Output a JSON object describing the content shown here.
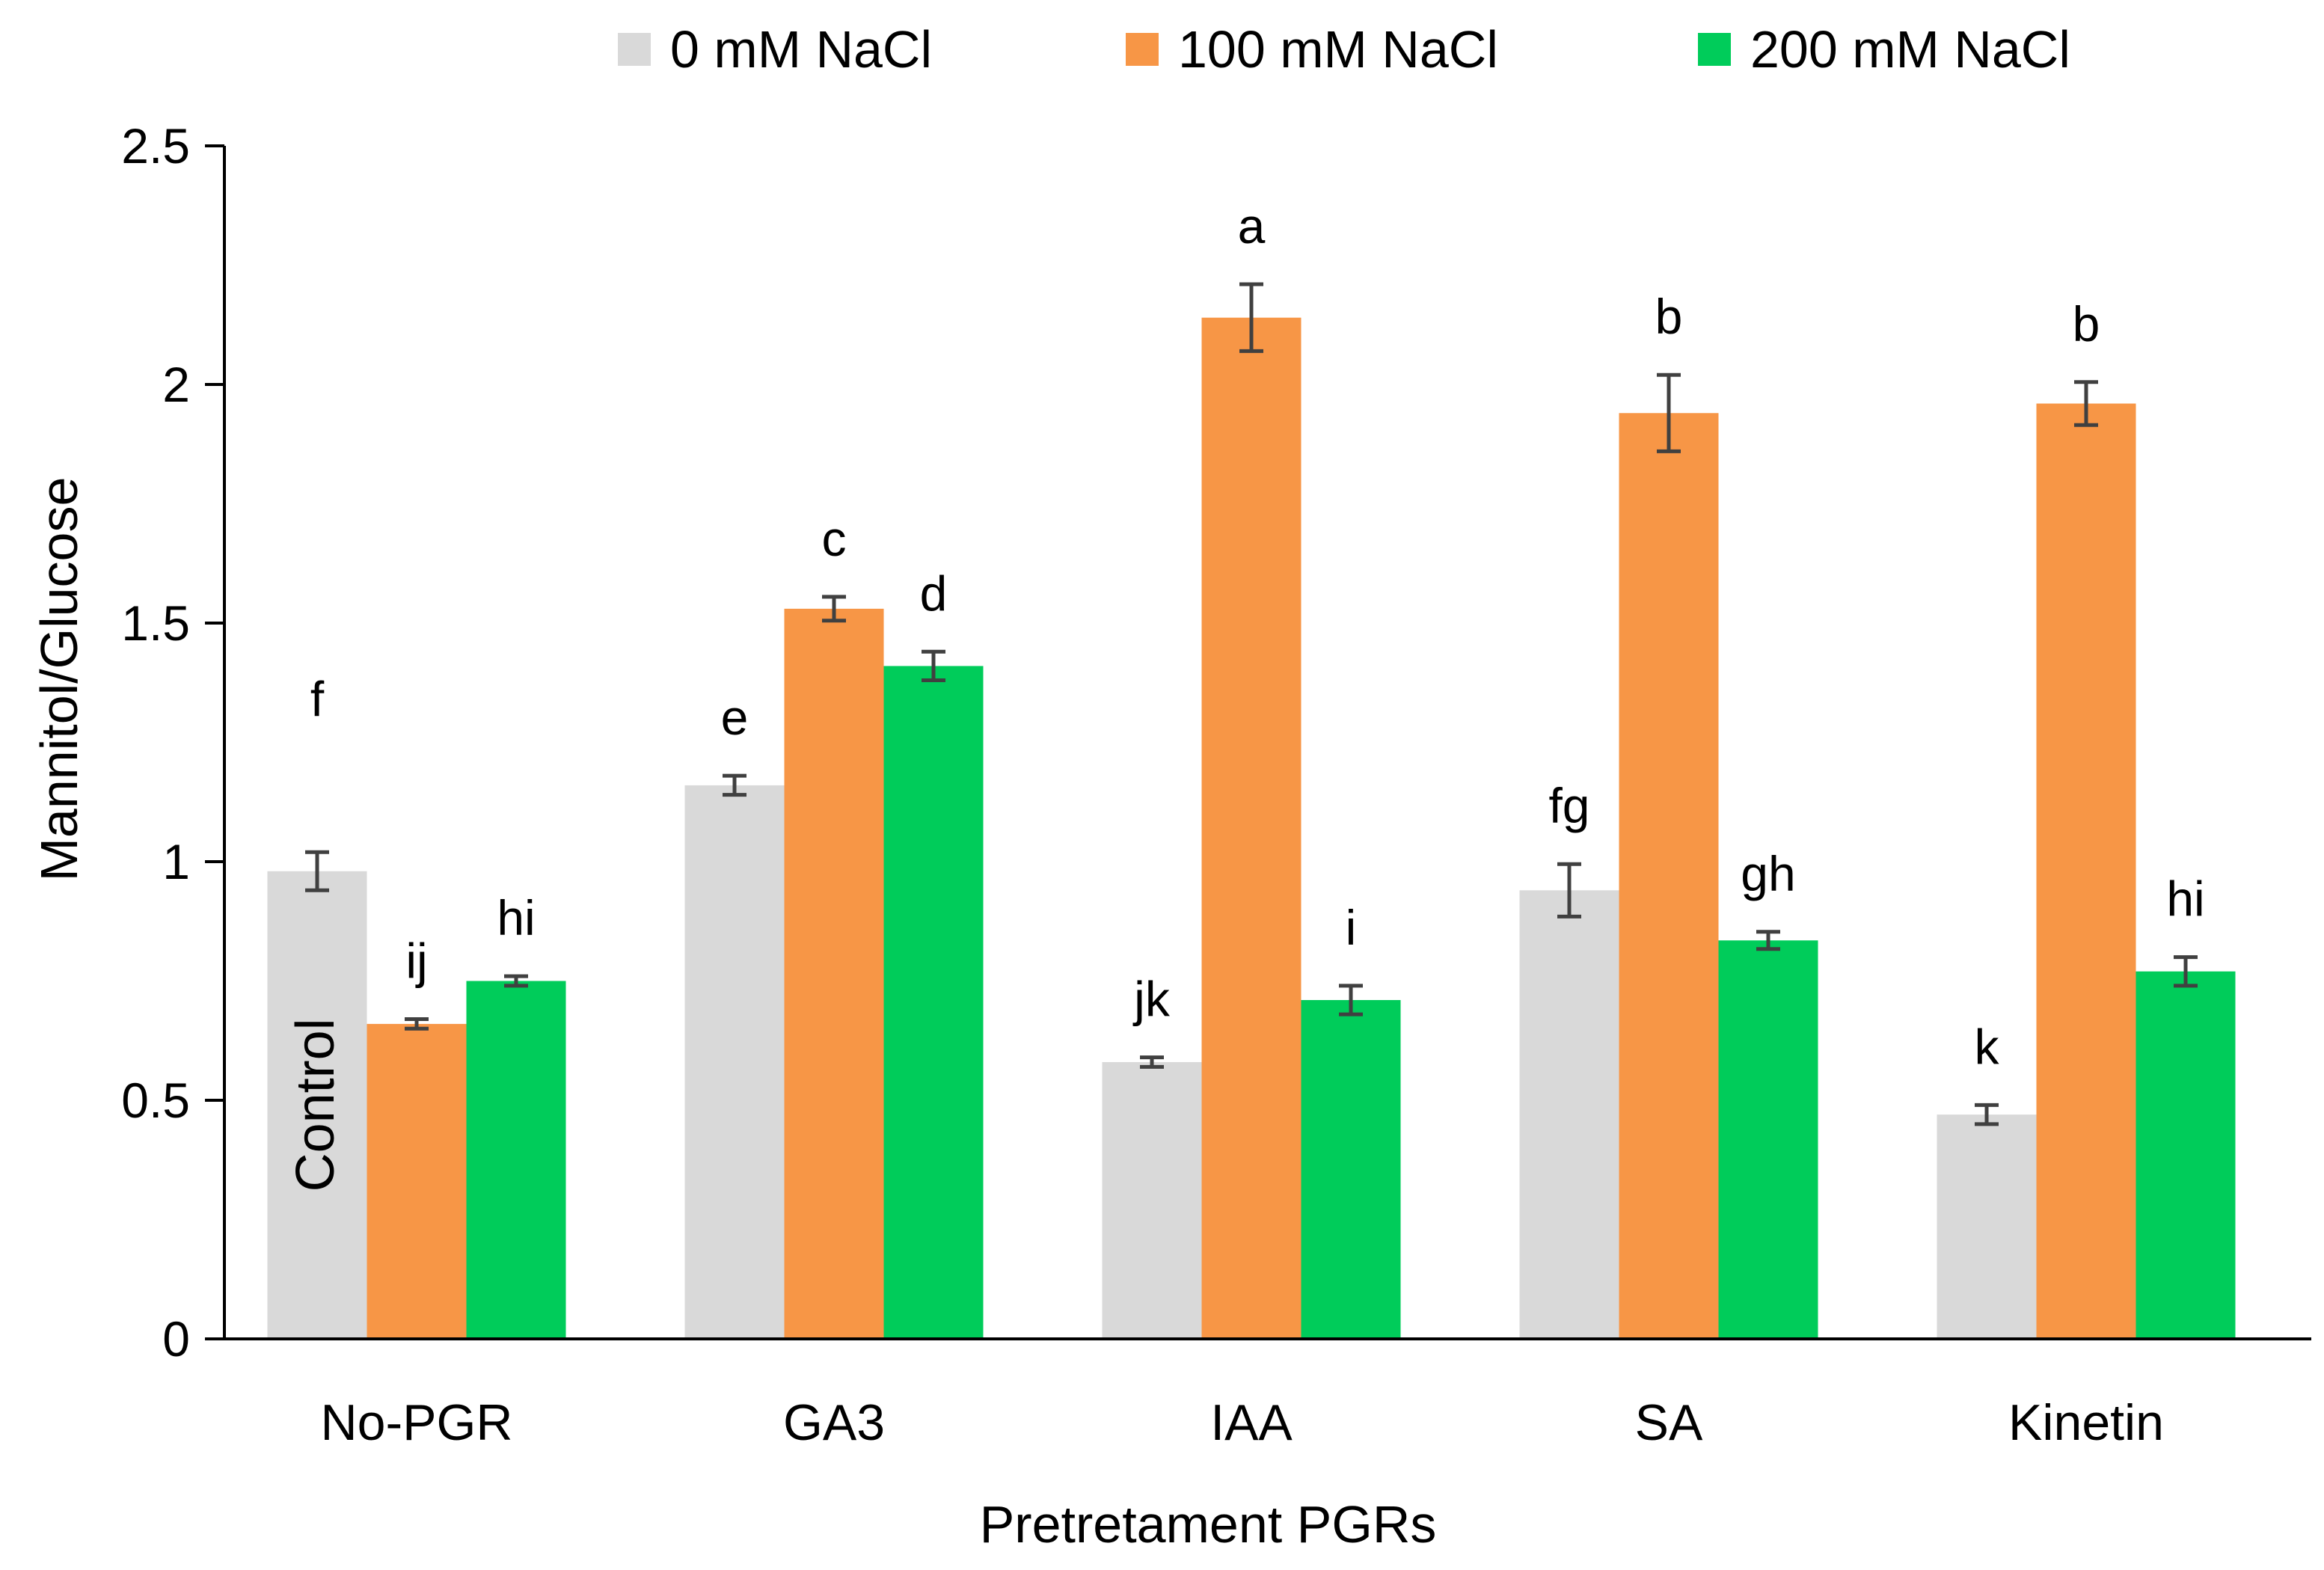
{
  "chart_data": {
    "type": "bar",
    "title": "",
    "xlabel": "Pretretament PGRs",
    "ylabel": "Mannitol/Glucose",
    "ylim": [
      0,
      2.5
    ],
    "yticks": [
      0,
      0.5,
      1,
      1.5,
      2,
      2.5
    ],
    "ytick_labels": [
      "0",
      "0.5",
      "1",
      "1.5",
      "2",
      "2.5"
    ],
    "grid": false,
    "legend_position": "top",
    "categories": [
      "No-PGR",
      "GA3",
      "IAA",
      "SA",
      "Kinetin"
    ],
    "series": [
      {
        "name": "0 mM NaCl",
        "color": "#d9d9d9",
        "values": [
          0.98,
          1.16,
          0.58,
          0.94,
          0.47
        ],
        "errors": [
          0.04,
          0.02,
          0.01,
          0.055,
          0.02
        ],
        "letters": [
          "f",
          "e",
          "jk",
          "fg",
          "k"
        ]
      },
      {
        "name": "100 mM NaCl",
        "color": "#f79646",
        "values": [
          0.66,
          1.53,
          2.14,
          1.94,
          1.96
        ],
        "errors": [
          0.01,
          0.025,
          0.07,
          0.08,
          0.045
        ],
        "letters": [
          "ij",
          "c",
          "a",
          "b",
          "b"
        ]
      },
      {
        "name": "200 mM NaCl",
        "color": "#00cc5a",
        "values": [
          0.75,
          1.41,
          0.71,
          0.835,
          0.77
        ],
        "errors": [
          0.01,
          0.03,
          0.03,
          0.018,
          0.03
        ],
        "letters": [
          "hi",
          "d",
          "i",
          "gh",
          "hi"
        ]
      }
    ],
    "annotations": [
      {
        "text": "Control",
        "category": "No-PGR",
        "series": "0 mM NaCl"
      }
    ]
  }
}
